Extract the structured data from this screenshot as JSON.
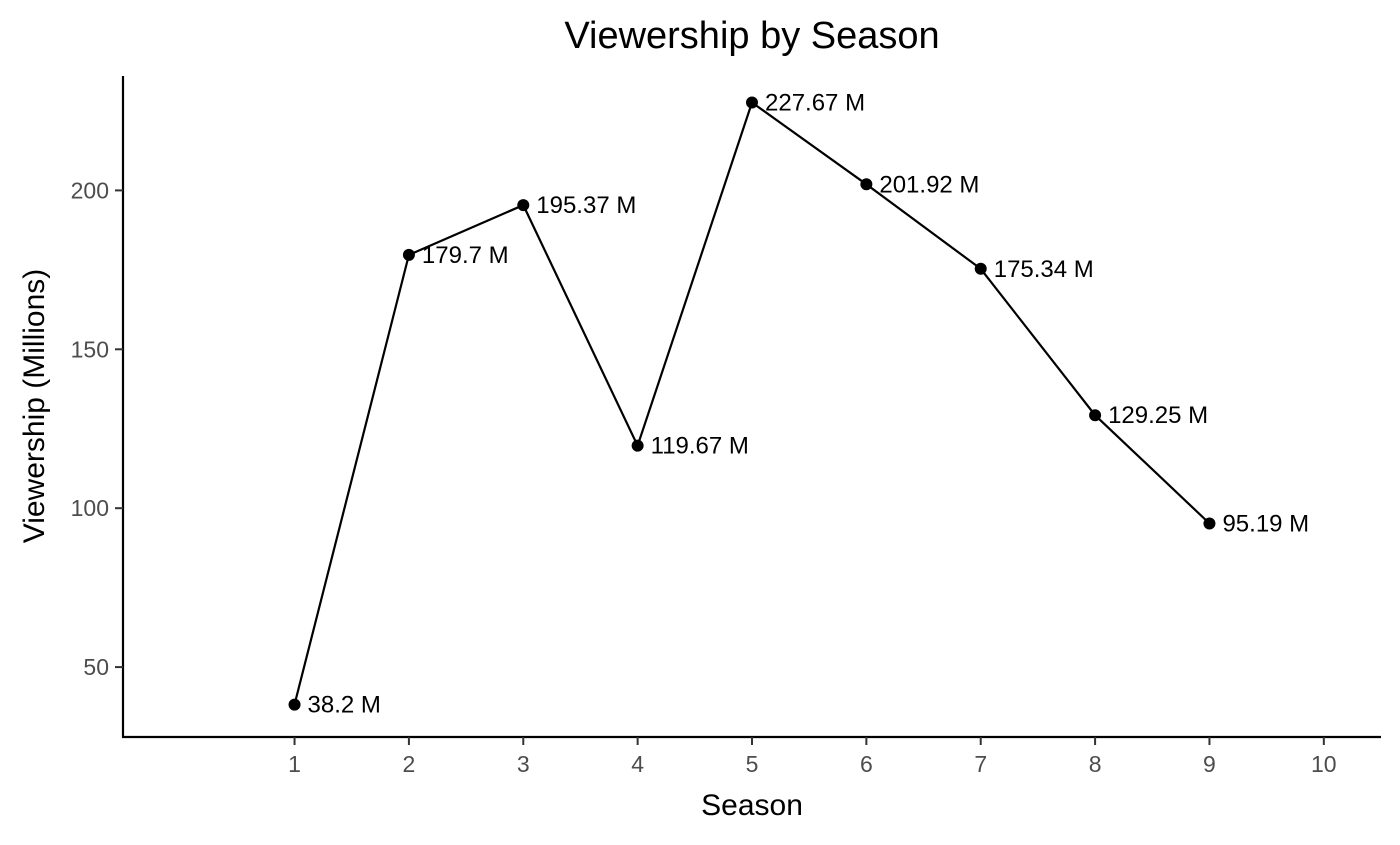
{
  "chart_data": {
    "type": "line",
    "title": "Viewership by Season",
    "xlabel": "Season",
    "ylabel": "Viewership (Millions)",
    "x_ticks": [
      1,
      2,
      3,
      4,
      5,
      6,
      7,
      8,
      9,
      10
    ],
    "y_ticks": [
      50,
      100,
      150,
      200
    ],
    "xlim": [
      -0.5,
      10.5
    ],
    "ylim": [
      28,
      236
    ],
    "grid": false,
    "legend": "none",
    "colors": {
      "line": "#000000",
      "point": "#000000",
      "text": "#000000",
      "tick_text": "#4d4d4d"
    },
    "series": [
      {
        "x": [
          1,
          2,
          3,
          4,
          5,
          6,
          7,
          8,
          9
        ],
        "values": [
          38.2,
          179.7,
          195.37,
          119.67,
          227.67,
          201.92,
          175.34,
          129.25,
          95.19
        ],
        "labels": [
          "38.2 M",
          "179.7 M",
          "195.37 M",
          "119.67 M",
          "227.67 M",
          "201.92 M",
          "175.34 M",
          "129.25 M",
          "95.19 M"
        ]
      }
    ]
  }
}
